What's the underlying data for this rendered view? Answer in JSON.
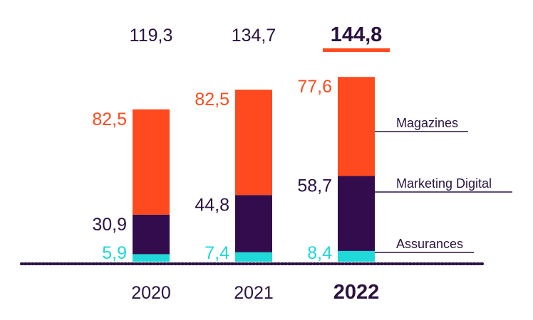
{
  "chart_data": {
    "type": "bar",
    "stacked": true,
    "categories": [
      "2020",
      "2021",
      "2022"
    ],
    "totals": [
      "119,3",
      "134,7",
      "144,8"
    ],
    "highlight_category": "2022",
    "series": [
      {
        "name": "Assurances",
        "values": [
          5.9,
          7.4,
          8.4
        ],
        "labels": [
          "5,9",
          "7,4",
          "8,4"
        ],
        "color": "#1fd8d8"
      },
      {
        "name": "Marketing Digital",
        "values": [
          30.9,
          44.8,
          58.7
        ],
        "labels": [
          "30,9",
          "44,8",
          "58,7"
        ],
        "color": "#330c4e"
      },
      {
        "name": "Magazines",
        "values": [
          82.5,
          82.5,
          77.6
        ],
        "labels": [
          "82,5",
          "82,5",
          "77,6"
        ],
        "color": "#fe4a1e"
      }
    ],
    "legend_placement": "right",
    "grid": false
  },
  "colors": {
    "text_dark": "#2a1240",
    "accent": "#fe4a1e",
    "baseline": "#2a1240"
  }
}
